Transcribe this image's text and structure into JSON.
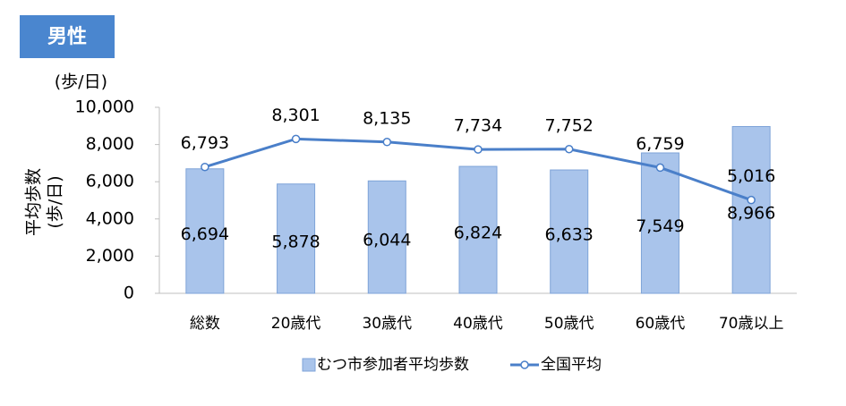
{
  "header": {
    "badge": "男性"
  },
  "chart_data": {
    "type": "combo",
    "y_unit": "(歩/日)",
    "ylabel": [
      "平均歩数",
      "(歩/日)"
    ],
    "categories": [
      "総数",
      "20歳代",
      "30歳代",
      "40歳代",
      "50歳代",
      "60歳代",
      "70歳以上"
    ],
    "series": [
      {
        "name": "むつ市参加者平均歩数",
        "type": "bar",
        "color": "#a9c4eb",
        "values": [
          6694,
          5878,
          6044,
          6824,
          6633,
          7549,
          8966
        ]
      },
      {
        "name": "全国平均",
        "type": "line",
        "color": "#4a7fc9",
        "values": [
          6793,
          8301,
          8135,
          7734,
          7752,
          6759,
          5016
        ]
      }
    ],
    "value_labels": [
      [
        "6,694",
        "5,878",
        "6,044",
        "6,824",
        "6,633",
        "7,549",
        "8,966"
      ],
      [
        "6,793",
        "8,301",
        "8,135",
        "7,734",
        "7,752",
        "6,759",
        "5,016"
      ]
    ],
    "ylim": [
      0,
      10000
    ],
    "yticks": [
      0,
      {
        "value": 2000,
        "label": "2,000"
      },
      {
        "value": 4000,
        "label": "4,000"
      },
      {
        "value": 6000,
        "label": "6,000"
      },
      {
        "value": 8000,
        "label": "8,000"
      },
      {
        "value": 10000,
        "label": "10,000"
      }
    ],
    "legend": "bottom"
  }
}
